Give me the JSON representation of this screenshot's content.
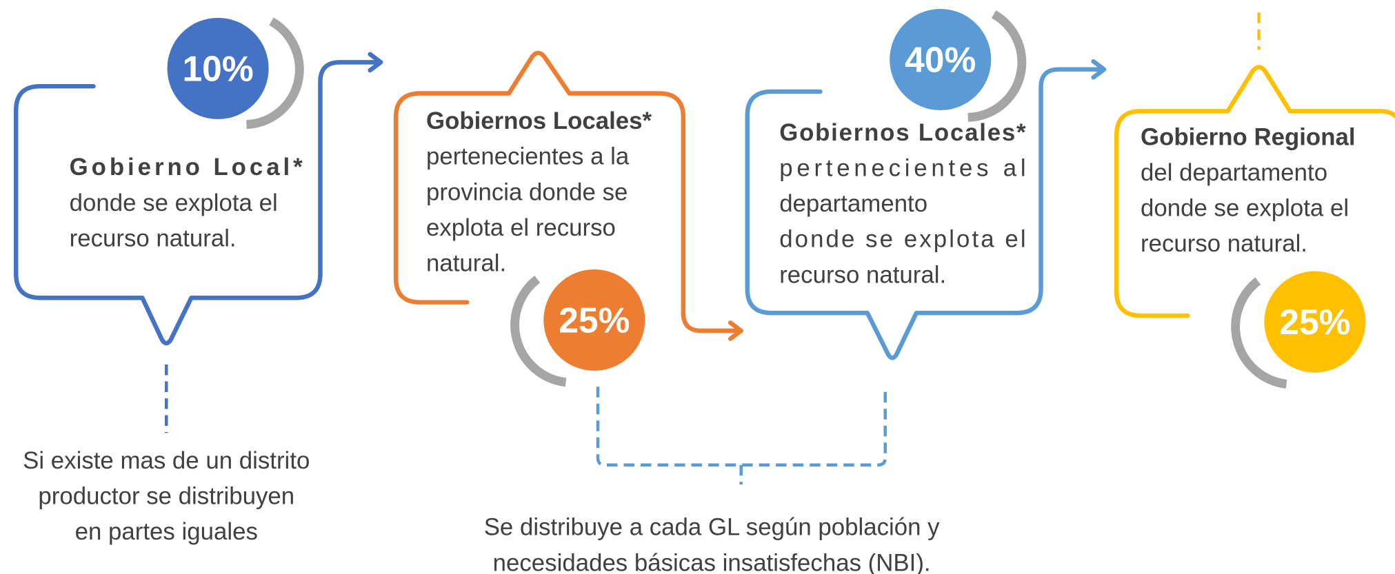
{
  "nodes": [
    {
      "badge": "10%",
      "title": "Gobierno Local*",
      "lines": [
        "donde se explota el",
        "recurso natural."
      ]
    },
    {
      "badge": "25%",
      "title": "Gobiernos Locales*",
      "lines": [
        "pertenecientes a la",
        "provincia donde se",
        "explota el recurso",
        "natural."
      ]
    },
    {
      "badge": "40%",
      "title": "Gobiernos Locales*",
      "lines": [
        "pertenecientes al",
        "departamento",
        "donde se explota el",
        "recurso natural."
      ]
    },
    {
      "badge": "25%",
      "title": "Gobierno Regional",
      "lines": [
        "del departamento",
        "donde se explota el",
        "recurso natural."
      ]
    }
  ],
  "notes": [
    {
      "lines": [
        "Si existe mas de un distrito",
        "productor se distribuyen",
        "en partes iguales"
      ]
    },
    {
      "lines": [
        "Se distribuye a cada GL según población y",
        "necesidades básicas insatisfechas (NBI)."
      ]
    }
  ]
}
